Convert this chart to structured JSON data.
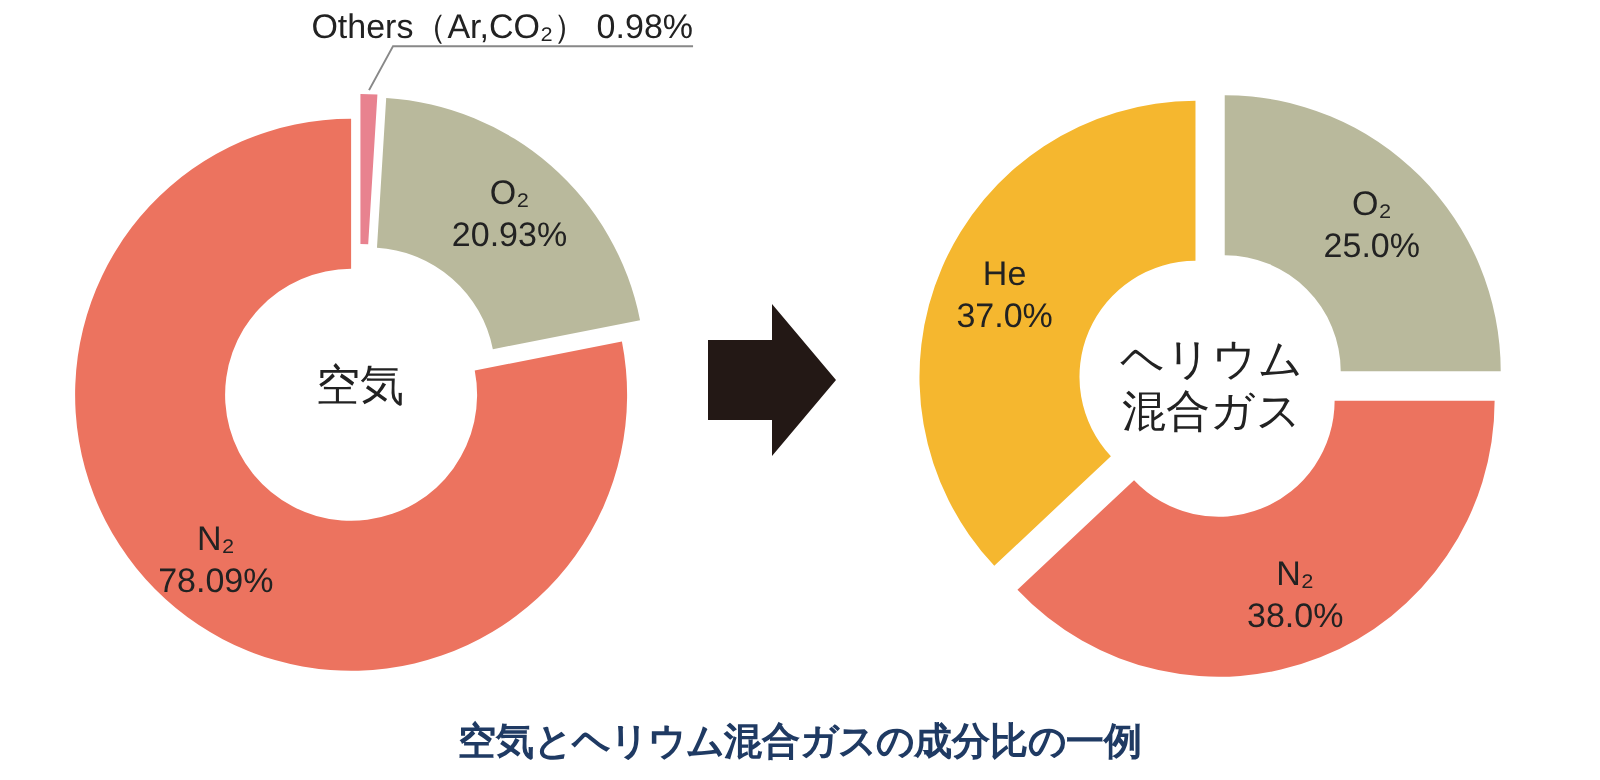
{
  "chart_data": [
    {
      "type": "donut",
      "categories": [
        "Others（Ar,CO₂）",
        "O₂",
        "N₂"
      ],
      "values": [
        0.98,
        20.93,
        78.09
      ],
      "colors": [
        "#e8828f",
        "#b9b99c",
        "#ec735f"
      ],
      "value_labels": [
        "0.98%",
        "20.93%",
        "78.09%"
      ],
      "annotations": [
        "空気"
      ],
      "title": "空気とヘリウム混合ガスの成分比の一例"
    },
    {
      "type": "donut",
      "categories": [
        "O₂",
        "N₂",
        "He"
      ],
      "values": [
        25.0,
        38.0,
        37.0
      ],
      "colors": [
        "#b9b99c",
        "#ec735f",
        "#f5b72f"
      ],
      "value_labels": [
        "25.0%",
        "38.0%",
        "37.0%"
      ],
      "annotations": [
        "ヘリウム",
        "混合ガス"
      ]
    }
  ]
}
